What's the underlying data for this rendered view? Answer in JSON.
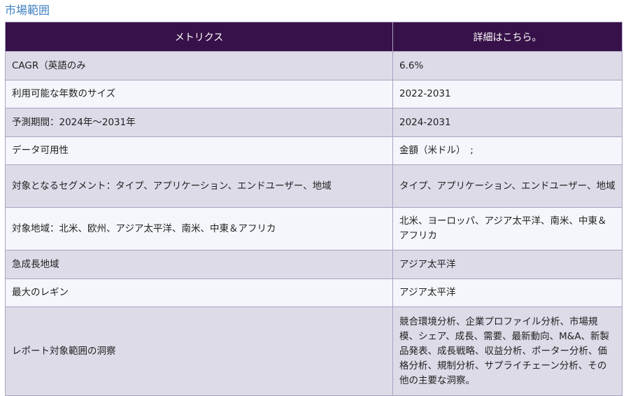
{
  "title": "市場範囲",
  "header": {
    "metric": "メトリクス",
    "details": "詳細はこちら。"
  },
  "rows": [
    {
      "metric": "CAGR（英語のみ",
      "value": "6.6%"
    },
    {
      "metric": "利用可能な年数のサイズ",
      "value": "2022-2031"
    },
    {
      "metric": "予測期間：2024年～2031年",
      "value": "2024-2031"
    },
    {
      "metric": "データ可用性",
      "value": "金額（米ドル）　;"
    },
    {
      "metric": "対象となるセグメント：タイプ、アプリケーション、エンドユーザー、地域",
      "value": "タイプ、アプリケーション、エンドユーザー、地域"
    },
    {
      "metric": "対象地域：北米、欧州、アジア太平洋、南米、中東＆アフリカ",
      "value": "北米、ヨーロッパ、アジア太平洋、南米、中東＆アフリカ"
    },
    {
      "metric": "急成長地域",
      "value": "アジア太平洋"
    },
    {
      "metric": "最大のレギン",
      "value": "アジア太平洋"
    },
    {
      "metric": "レポート対象範囲の洞察",
      "value": "競合環境分析、企業プロファイル分析、市場規模、シェア、成長、需要、最新動向、M&A、新製品発表、成長戦略、収益分析、ポーター分析、価格分析、規制分析、サプライチェーン分析、その他の主要な洞察。"
    }
  ]
}
